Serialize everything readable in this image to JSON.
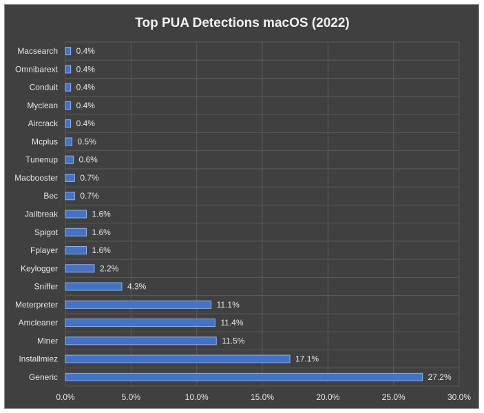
{
  "chart_data": {
    "type": "bar",
    "orientation": "horizontal",
    "title": "Top PUA Detections macOS (2022)",
    "categories": [
      "Macsearch",
      "Omnibarext",
      "Conduit",
      "Myclean",
      "Aircrack",
      "Mcplus",
      "Tunenup",
      "Macbooster",
      "Bec",
      "Jailbreak",
      "Spigot",
      "Fplayer",
      "Keylogger",
      "Sniffer",
      "Meterpreter",
      "Amcleaner",
      "Miner",
      "Installmiez",
      "Generic"
    ],
    "values": [
      0.4,
      0.4,
      0.4,
      0.4,
      0.4,
      0.5,
      0.6,
      0.7,
      0.7,
      1.6,
      1.6,
      1.6,
      2.2,
      4.3,
      11.1,
      11.4,
      11.5,
      17.1,
      27.2
    ],
    "value_labels": [
      "0.4%",
      "0.4%",
      "0.4%",
      "0.4%",
      "0.4%",
      "0.5%",
      "0.6%",
      "0.7%",
      "0.7%",
      "1.6%",
      "1.6%",
      "1.6%",
      "2.2%",
      "4.3%",
      "11.1%",
      "11.4%",
      "11.5%",
      "17.1%",
      "27.2%"
    ],
    "xlim": [
      0,
      30
    ],
    "xticks": [
      0,
      5,
      10,
      15,
      20,
      25,
      30
    ],
    "xtick_labels": [
      "0.0%",
      "5.0%",
      "10.0%",
      "15.0%",
      "20.0%",
      "25.0%",
      "30.0%"
    ],
    "grid": true,
    "legend": "none",
    "colors": {
      "background": "#404040",
      "bar_fill": "#4472c4",
      "bar_edge": "#8fb0e8",
      "grid": "#5a5a5a",
      "text": "#e6e6e6"
    }
  }
}
